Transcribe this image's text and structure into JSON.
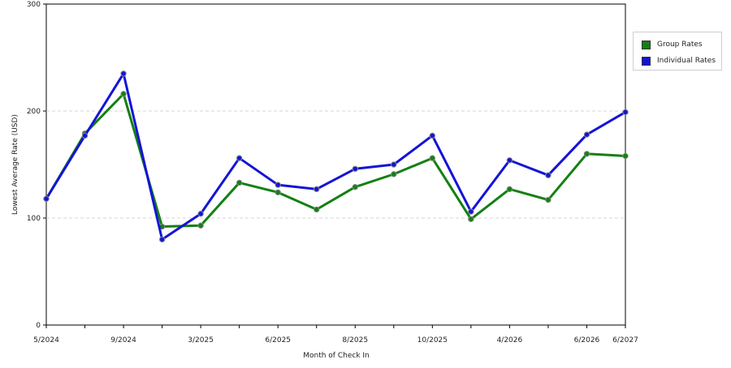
{
  "chart_data": {
    "type": "line",
    "xlabel": "Month of Check In",
    "ylabel": "Lowest Average Rate (USD)",
    "ylim": [
      0,
      300
    ],
    "yticks": [
      0,
      100,
      200,
      300
    ],
    "grid": true,
    "legend_position": "top-right",
    "x_tick_labels": [
      "5/2024",
      "9/2024",
      "3/2025",
      "6/2025",
      "8/2025",
      "10/2025",
      "4/2026",
      "6/2026",
      "6/2027"
    ],
    "x_tick_indices": [
      0,
      2,
      4,
      6,
      8,
      10,
      12,
      14,
      15
    ],
    "series": [
      {
        "name": "Group Rates",
        "color": "#138013",
        "values": [
          118,
          179,
          216,
          92,
          93,
          133,
          124,
          108,
          129,
          141,
          156,
          99,
          127,
          117,
          160,
          158
        ]
      },
      {
        "name": "Individual Rates",
        "color": "#1414d6",
        "values": [
          118,
          177,
          235,
          80,
          104,
          156,
          131,
          127,
          146,
          150,
          177,
          106,
          154,
          140,
          178,
          199
        ]
      }
    ]
  }
}
